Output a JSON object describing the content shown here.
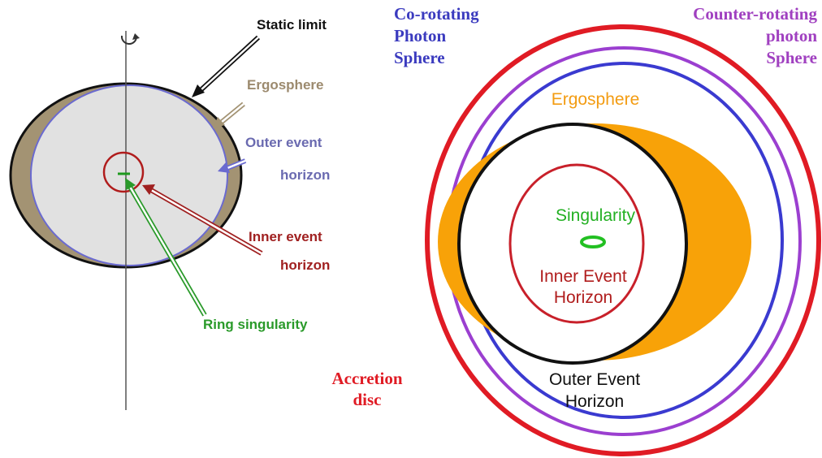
{
  "left_diagram": {
    "labels": [
      {
        "lines": [
          "Static limit"
        ]
      },
      {
        "lines": [
          "Ergosphere"
        ]
      },
      {
        "lines": [
          "Outer event",
          "horizon"
        ]
      },
      {
        "lines": [
          "Inner event",
          "horizon"
        ]
      },
      {
        "lines": [
          "Ring singularity"
        ]
      }
    ]
  },
  "right_diagram": {
    "labels": [
      {
        "lines": [
          "Co-rotating",
          "Photon",
          "Sphere"
        ]
      },
      {
        "lines": [
          "Counter-rotating",
          "photon",
          "Sphere"
        ]
      },
      {
        "lines": [
          "Ergosphere"
        ]
      },
      {
        "lines": [
          "Singularity"
        ]
      },
      {
        "lines": [
          "Inner Event",
          "Horizon"
        ]
      },
      {
        "lines": [
          "Outer Event",
          "Horizon"
        ]
      },
      {
        "lines": [
          "Accretion",
          "disc"
        ]
      }
    ]
  }
}
